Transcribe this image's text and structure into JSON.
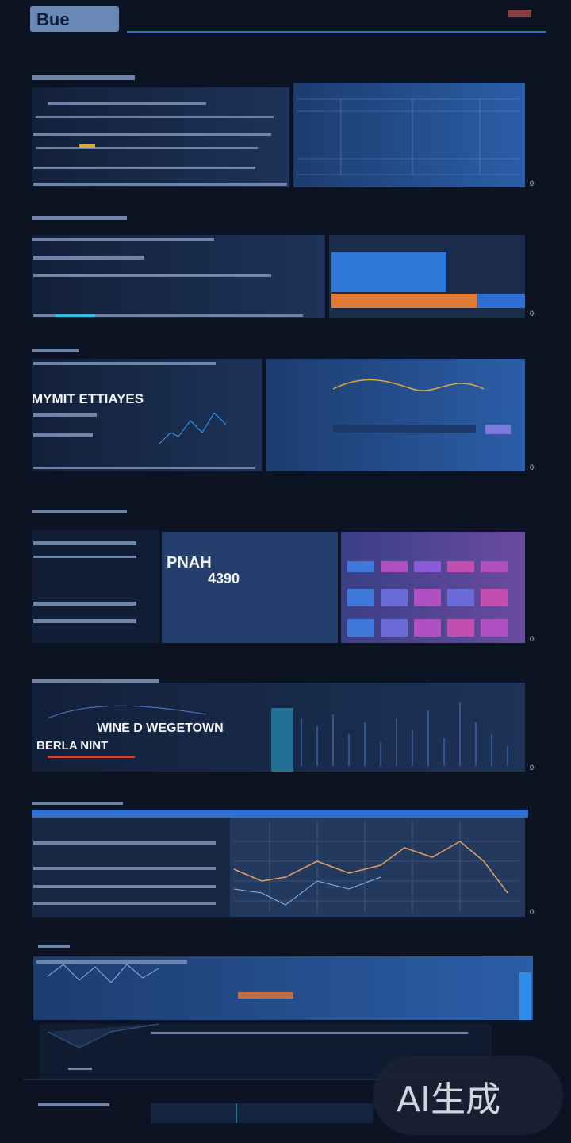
{
  "header": {
    "logo": "Bue"
  },
  "panels": [
    {
      "index": "0"
    },
    {
      "index": "0"
    },
    {
      "headline": "MYMIT ETTIAYES",
      "index": "0"
    },
    {
      "headline": "PNAH",
      "figure": "4390",
      "index": "0"
    },
    {
      "headline": "WINE D WEGETOWN",
      "subline": "BERLA NINT",
      "index": "0"
    },
    {
      "index": "0"
    }
  ],
  "watermark": "AI生成"
}
